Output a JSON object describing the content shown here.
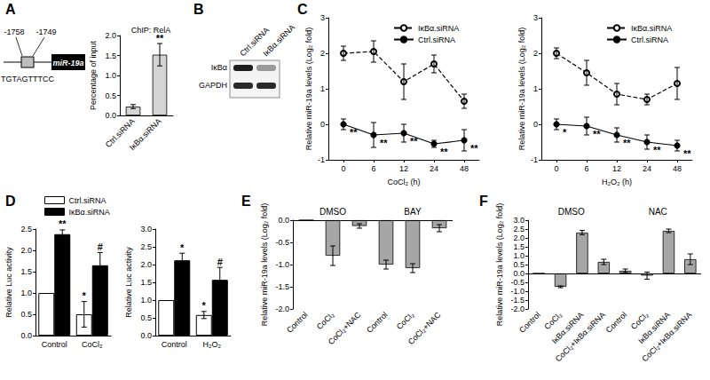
{
  "panels": [
    "A",
    "B",
    "C",
    "D",
    "E",
    "F"
  ],
  "diagram": {
    "positions": [
      "-1758",
      "-1749"
    ],
    "gene": "miR-19a",
    "site": "TGTAGTTTCC"
  },
  "blot": {
    "lanes": [
      "Ctrl.siRNA",
      "IκBα.siRNA"
    ],
    "rows": [
      "IκBα",
      "GAPDH"
    ]
  },
  "chart_data": [
    {
      "type": "bar",
      "title": "ChIP: RelA",
      "categories": [
        "Ctrl.siRNA",
        "IκBα.siRNA"
      ],
      "values": [
        0.22,
        1.52
      ],
      "errors": [
        0.05,
        0.28
      ],
      "annotations": [
        null,
        "**"
      ],
      "color": "#d4d4d4",
      "ylabel": "Percentage of input",
      "ylim": [
        0,
        2
      ],
      "yticks": [
        {
          "value": 0,
          "label": "0.0"
        },
        0.5,
        {
          "value": 1,
          "label": "1.0"
        },
        1.5,
        {
          "value": 2,
          "label": "2.0"
        }
      ],
      "grid": false
    },
    {
      "type": "line",
      "categories": [
        "0",
        "6",
        "12",
        "24",
        "48"
      ],
      "xlabel": "CoCl₂ (h)",
      "ylabel": "Relative miR-19a levels (Log₂ fold)",
      "ylim": [
        -1,
        3
      ],
      "yticks": [
        -1,
        0,
        1,
        2,
        3
      ],
      "legend": "top",
      "grid": false,
      "series": [
        {
          "name": "IκBα.siRNA",
          "color": "#000000",
          "marker": "open_circle",
          "line_style": "dashed",
          "values": [
            2.0,
            2.05,
            1.2,
            1.7,
            0.65
          ],
          "errors": [
            0.2,
            0.3,
            0.5,
            0.25,
            0.2
          ]
        },
        {
          "name": "Ctrl.siRNA",
          "color": "#000000",
          "marker": "circle",
          "line_style": "solid",
          "values": [
            0.0,
            -0.3,
            -0.25,
            -0.55,
            -0.45
          ],
          "errors": [
            0.15,
            0.35,
            0.25,
            0.1,
            0.3
          ],
          "annotations": [
            "**",
            "**",
            "**",
            "**",
            "**"
          ]
        }
      ]
    },
    {
      "type": "line",
      "categories": [
        "0",
        "6",
        "12",
        "24",
        "48"
      ],
      "xlabel": "H₂O₂ (h)",
      "ylabel": "Relative miR-19a levels (Log₂ fold)",
      "ylim": [
        -1,
        3
      ],
      "yticks": [
        -1,
        0,
        1,
        2,
        3
      ],
      "legend": "top",
      "grid": false,
      "series": [
        {
          "name": "IκBα.siRNA",
          "color": "#000000",
          "marker": "open_circle",
          "line_style": "dashed",
          "values": [
            2.0,
            1.45,
            0.85,
            0.7,
            1.15
          ],
          "errors": [
            0.15,
            0.35,
            0.3,
            0.15,
            0.45
          ]
        },
        {
          "name": "Ctrl.siRNA",
          "color": "#000000",
          "marker": "circle",
          "line_style": "solid",
          "values": [
            0.0,
            -0.05,
            -0.3,
            -0.5,
            -0.6
          ],
          "errors": [
            0.15,
            0.25,
            0.2,
            0.2,
            0.15
          ],
          "annotations": [
            "*",
            "**",
            "**",
            "**",
            "**"
          ]
        }
      ]
    },
    {
      "type": "bar",
      "categories": [
        "Control",
        "CoCl₂"
      ],
      "ylabel": "Relative Luc activity",
      "ylim": [
        0,
        2.5
      ],
      "yticks": [
        {
          "value": 0,
          "label": "0.0"
        },
        0.5,
        {
          "value": 1,
          "label": "1.0"
        },
        1.5,
        {
          "value": 2,
          "label": "2.0"
        },
        2.5
      ],
      "legend": "top-left",
      "grid": false,
      "series": [
        {
          "name": "Ctrl.siRNA",
          "color": "#ffffff",
          "values": [
            1.0,
            0.5
          ],
          "errors": [
            0,
            0.3
          ],
          "annotations": [
            null,
            "*"
          ]
        },
        {
          "name": "IκBα.siRNA",
          "color": "#000000",
          "values": [
            2.38,
            1.65
          ],
          "errors": [
            0.1,
            0.3
          ],
          "annotations": [
            "**",
            "#"
          ]
        }
      ]
    },
    {
      "type": "bar",
      "categories": [
        "Control",
        "H₂O₂"
      ],
      "ylabel": "Relative Luc activity",
      "ylim": [
        0,
        3
      ],
      "yticks": [
        {
          "value": 0,
          "label": "0.0"
        },
        0.5,
        {
          "value": 1,
          "label": "1.0"
        },
        1.5,
        {
          "value": 2,
          "label": "2.0"
        },
        2.5,
        {
          "value": 3,
          "label": "3.0"
        }
      ],
      "grid": false,
      "series": [
        {
          "name": "Ctrl.siRNA",
          "color": "#ffffff",
          "values": [
            1.0,
            0.58
          ],
          "errors": [
            0,
            0.1
          ],
          "annotations": [
            null,
            "*"
          ]
        },
        {
          "name": "IκBα.siRNA",
          "color": "#000000",
          "values": [
            2.12,
            1.57
          ],
          "errors": [
            0.2,
            0.35
          ],
          "annotations": [
            "*",
            "#"
          ]
        }
      ]
    },
    {
      "type": "bar",
      "categories": [
        "Control",
        "CoCl₂",
        "CoCl₂+NAC",
        "Control",
        "CoCl₂",
        "CoCl₂+NAC"
      ],
      "group_labels": [
        "DMSO",
        "BAY"
      ],
      "values": [
        0,
        -0.8,
        -0.13,
        -1.0,
        -1.08,
        -0.18
      ],
      "errors": [
        0,
        0.22,
        0.05,
        0.1,
        0.1,
        0.08
      ],
      "color": "#a6a6a6",
      "ylabel": "Relative miR-19a levels (Log₂ fold)",
      "ylim": [
        -2,
        0
      ],
      "yticks": [
        {
          "value": -2,
          "label": "-2.0"
        },
        -1.5,
        {
          "value": -1,
          "label": "-1.0"
        },
        -0.5,
        {
          "value": 0,
          "label": "0.0"
        }
      ],
      "grid": false
    },
    {
      "type": "bar",
      "categories": [
        "Control",
        "CoCl₂",
        "IκBα.siRNA",
        "CoCl₂+IκBα.siRNA",
        "Control",
        "CoCl₂",
        "IκBα.siRNA",
        "CoCl₂+IκBα.siRNA"
      ],
      "group_labels": [
        "DMSO",
        "NAC"
      ],
      "values": [
        0,
        -0.75,
        2.3,
        0.65,
        0.15,
        -0.12,
        2.4,
        0.8
      ],
      "errors": [
        0,
        0.05,
        0.12,
        0.15,
        0.1,
        0.2,
        0.1,
        0.3
      ],
      "color": "#a6a6a6",
      "ylabel": "Relative miR-19a levels (Log₂ fold)",
      "ylim": [
        -2,
        3
      ],
      "yticks": [
        {
          "value": -2,
          "label": "-2.0"
        },
        -1.5,
        {
          "value": -1,
          "label": "-1.0"
        },
        -0.5,
        {
          "value": 0,
          "label": "0.0"
        },
        0.5,
        {
          "value": 1,
          "label": "1.0"
        },
        1.5,
        {
          "value": 2,
          "label": "2.0"
        },
        2.5,
        {
          "value": 3,
          "label": "3.0"
        }
      ],
      "grid": false
    }
  ]
}
